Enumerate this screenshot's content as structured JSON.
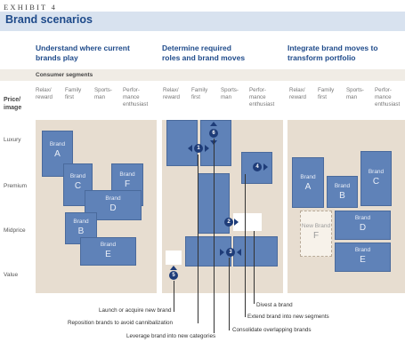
{
  "header": {
    "exhibit": "EXHIBIT 4",
    "title": "Brand scenarios"
  },
  "columns": [
    {
      "heading_line1": "Understand where current",
      "heading_line2": "brands play"
    },
    {
      "heading_line1": "Determine required",
      "heading_line2": "roles and brand moves"
    },
    {
      "heading_line1": "Integrate brand moves to",
      "heading_line2": "transform portfolio"
    }
  ],
  "axes": {
    "consumer_segments": "Consumer segments",
    "price_image_line1": "Price/",
    "price_image_line2": "image",
    "segments": [
      {
        "line1": "Relax/",
        "line2": "reward"
      },
      {
        "line1": "Family",
        "line2": "first"
      },
      {
        "line1": "Sports-",
        "line2": "man"
      },
      {
        "line1": "Perfor-",
        "line2": "mance",
        "line3": "enthusiast"
      }
    ],
    "rows": [
      "Luxury",
      "Premium",
      "Midprice",
      "Value"
    ]
  },
  "panel1": {
    "brand_a_line1": "Brand",
    "brand_a_line2": "A",
    "brand_c_line1": "Brand",
    "brand_c_line2": "C",
    "brand_f_line1": "Brand",
    "brand_f_line2": "F",
    "brand_d_line1": "Brand",
    "brand_d_line2": "D",
    "brand_b_line1": "Brand",
    "brand_b_line2": "B",
    "brand_e_line1": "Brand",
    "brand_e_line2": "E"
  },
  "panel2": {
    "markers": [
      "1",
      "2",
      "3",
      "4",
      "5",
      "6"
    ]
  },
  "panel3": {
    "brand_a_line1": "Brand",
    "brand_a_line2": "A",
    "brand_b_line1": "Brand",
    "brand_b_line2": "B",
    "brand_c_line1": "Brand",
    "brand_c_line2": "C",
    "new_brand_line1": "New Brand",
    "new_brand_line2": "F",
    "brand_d_line1": "Brand",
    "brand_d_line2": "D",
    "brand_e_line1": "Brand",
    "brand_e_line2": "E"
  },
  "callouts": {
    "divest": "Divest a brand",
    "extend": "Extend brand into new segments",
    "launch": "Launch or acquire new brand",
    "consolidate": "Consolidate overlapping brands",
    "reposition": "Reposition brands to avoid cannibalization",
    "leverage": "Leverage brand into new categories"
  },
  "colors": {
    "brand_box": "#5f82b8",
    "marker": "#1e3c78",
    "title": "#1e4a8a",
    "panel": "#e7ddd0"
  }
}
